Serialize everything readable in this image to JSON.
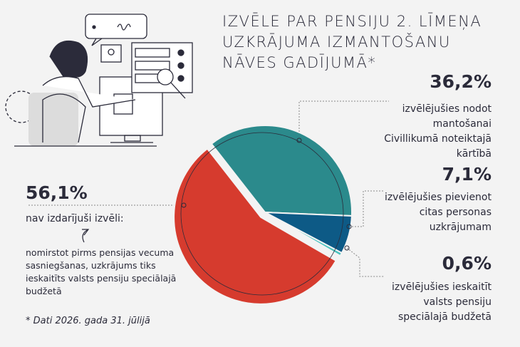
{
  "chart_data": {
    "type": "pie",
    "title": [
      "IZVĒLE PAR PENSIJU 2. LĪMEŅA",
      "UZKRĀJUMA IZMANTOŠANU",
      "NĀVES GADĪJUMĀ*"
    ],
    "categories": [
      "izvēlējušies nodot mantošanai Civillikumā noteiktajā kārtībā",
      "izvēlējušies pievienot citas personas uzkrājumam",
      "izvēlējušies ieskaitīt valsts pensiju speciālajā budžetā",
      "nav izdarījuši izvēli:"
    ],
    "values": [
      36.2,
      7.1,
      0.6,
      56.1
    ],
    "value_labels": [
      "36,2%",
      "7,1%",
      "0,6%",
      "56,1%"
    ],
    "colors": [
      "#2b8a8c",
      "#0d5a86",
      "#49c3bf",
      "#d63b2e"
    ],
    "annotation": "nomirstot pirms pensijas vecuma sasniegšanas, uzkrājums tiks ieskaitīts valsts pensiju speciālajā budžetā",
    "footnote": "* Dati 2026. gada 31. jūlijā"
  }
}
